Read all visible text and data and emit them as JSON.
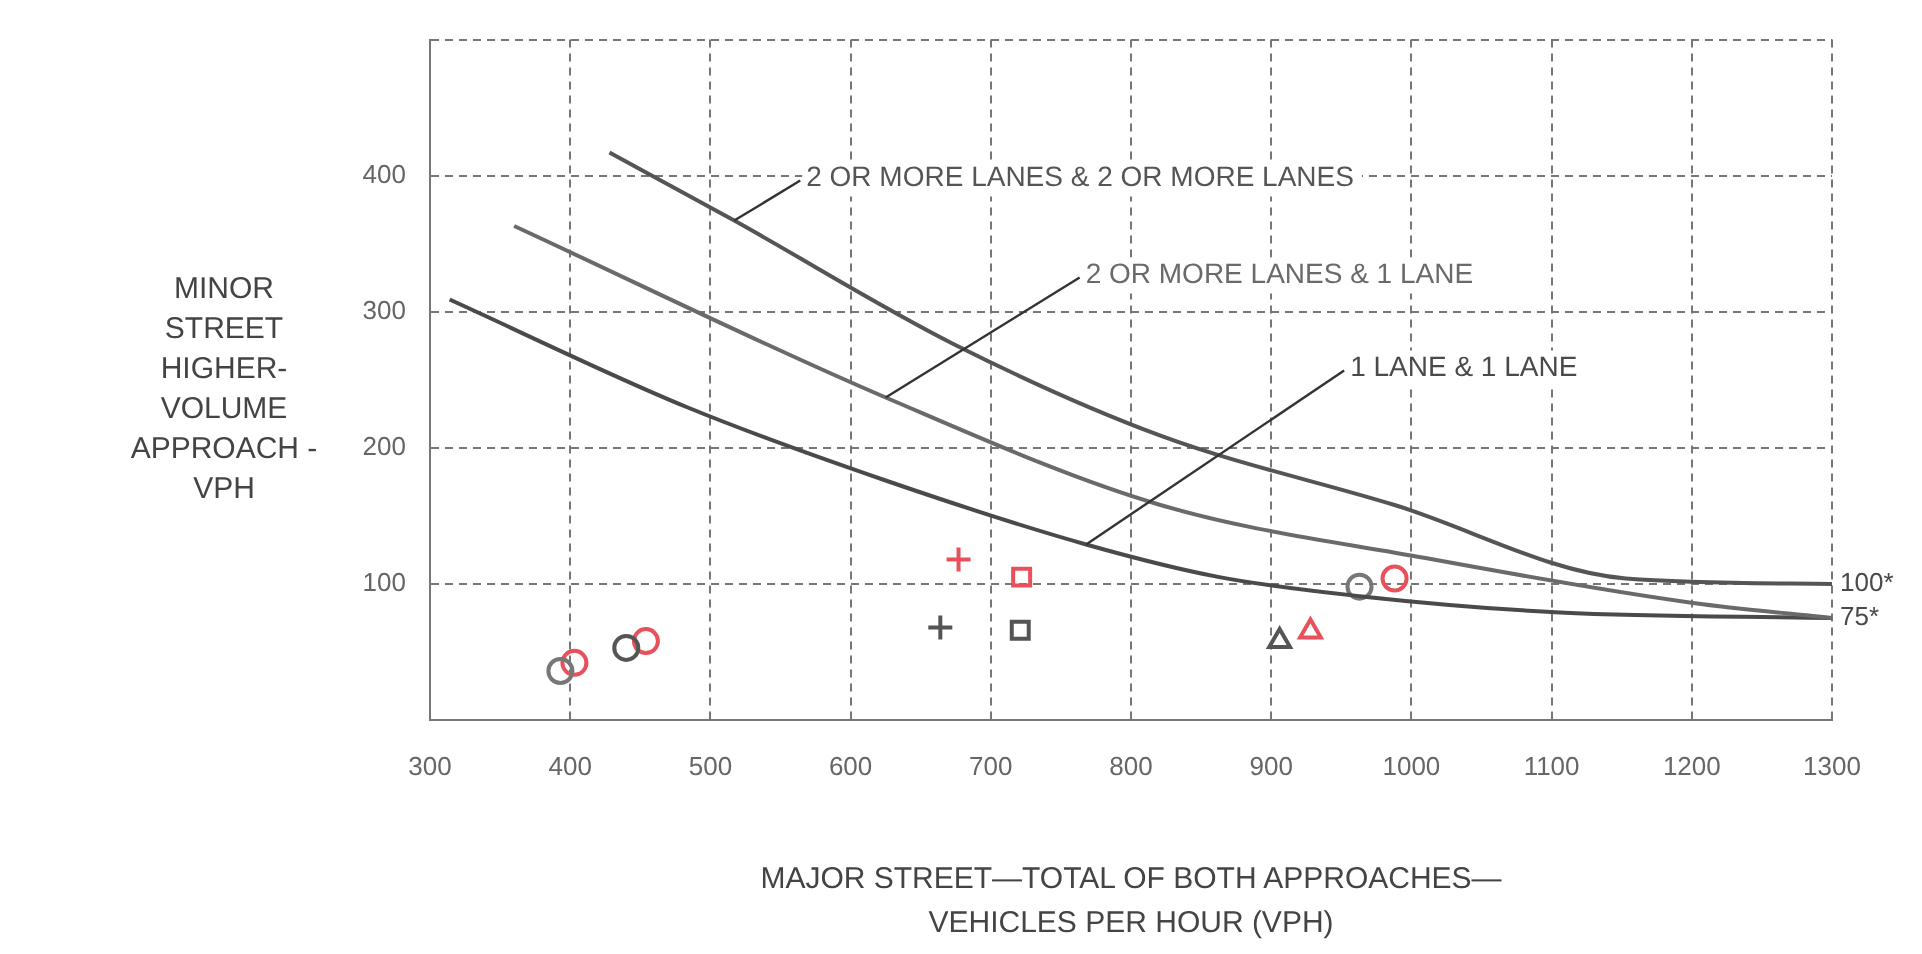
{
  "chart_data": {
    "type": "line",
    "xlabel": "MAJOR STREET—TOTAL OF BOTH APPROACHES—\nVEHICLES PER HOUR (VPH)",
    "ylabel": "MINOR\nSTREET\nHIGHER-\nVOLUME\nAPPROACH -\nVPH",
    "xlim": [
      300,
      1300
    ],
    "xticks": [
      300,
      400,
      500,
      600,
      700,
      800,
      900,
      1000,
      1100,
      1200,
      1300
    ],
    "ylim": [
      0,
      500
    ],
    "yticks": [
      {
        "value": 0,
        "label": null
      },
      100,
      200,
      300,
      400,
      {
        "value": 500,
        "label": null
      }
    ],
    "grid": true,
    "line_style": "solid",
    "marker": "none",
    "series": [
      {
        "name": "2 OR MORE LANES & 2 OR MORE LANES",
        "color": "#555555",
        "x": [
          428,
          517,
          674,
          821,
          988,
          1153,
          1300
        ],
        "values": [
          417,
          367,
          276,
          209,
          158,
          104,
          100
        ]
      },
      {
        "name": "2 OR MORE LANES & 1 LANE",
        "color": "#6a6a6a",
        "x": [
          360,
          625,
          821,
          1010,
          1201,
          1300
        ],
        "values": [
          363,
          237,
          158,
          119,
          86,
          75
        ]
      },
      {
        "name": "1 LANE & 1 LANE",
        "color": "#4a4a4a",
        "x": [
          314,
          483,
          625,
          768,
          863,
          963,
          1106,
          1300
        ],
        "values": [
          309,
          230,
          176,
          129,
          105,
          91,
          79,
          75
        ]
      },
      {
        "type": "scatter",
        "marker": "circle",
        "color": "#777777",
        "x": [
          393,
          963
        ],
        "values": [
          36,
          98
        ]
      },
      {
        "type": "scatter",
        "marker": "circle",
        "color": "#e8505b",
        "x": [
          403,
          988
        ],
        "values": [
          42,
          104
        ]
      },
      {
        "type": "scatter",
        "marker": "circle",
        "color": "#555555",
        "x": [
          440
        ],
        "values": [
          53
        ]
      },
      {
        "type": "scatter",
        "marker": "circle",
        "color": "#e8505b",
        "x": [
          454
        ],
        "values": [
          58
        ]
      },
      {
        "type": "scatter",
        "marker": "cross",
        "color": "#555555",
        "x": [
          664
        ],
        "values": [
          68
        ]
      },
      {
        "type": "scatter",
        "marker": "cross",
        "color": "#e8505b",
        "x": [
          677
        ],
        "values": [
          118
        ]
      },
      {
        "type": "scatter",
        "marker": "square",
        "color": "#555555",
        "x": [
          721
        ],
        "values": [
          66
        ]
      },
      {
        "type": "scatter",
        "marker": "square",
        "color": "#e8505b",
        "x": [
          722
        ],
        "values": [
          105
        ]
      },
      {
        "type": "scatter",
        "marker": "triangle",
        "color": "#555555",
        "x": [
          906
        ],
        "values": [
          58
        ]
      },
      {
        "type": "scatter",
        "marker": "triangle",
        "color": "#e8505b",
        "x": [
          928
        ],
        "values": [
          65
        ]
      }
    ],
    "annotations": [
      {
        "text": "100*",
        "x": 1300,
        "y": 100
      },
      {
        "text": "75*",
        "x": 1300,
        "y": 75
      }
    ]
  }
}
